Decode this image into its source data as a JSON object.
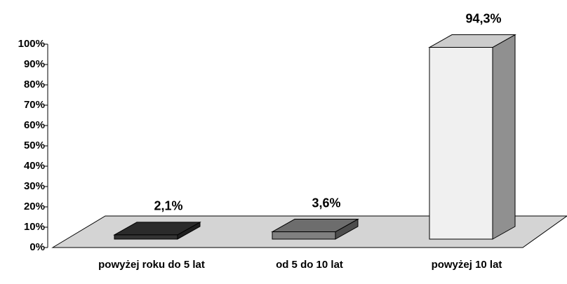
{
  "chart_data": {
    "type": "bar3d",
    "categories": [
      "powyżej roku do 5 lat",
      "od 5 do 10 lat",
      "powyżej 10 lat"
    ],
    "values": [
      2.1,
      3.6,
      94.3
    ],
    "value_labels": [
      "2,1%",
      "3,6%",
      "94,3%"
    ],
    "colors": [
      "#333333",
      "#808080",
      "#f0f0f0"
    ],
    "ylim": [
      0,
      100
    ],
    "yticks": [
      {
        "value": 0,
        "label": "0%"
      },
      {
        "value": 10,
        "label": "10%"
      },
      {
        "value": 20,
        "label": "20%"
      },
      {
        "value": 30,
        "label": "30%"
      },
      {
        "value": 40,
        "label": "40%"
      },
      {
        "value": 50,
        "label": "50%"
      },
      {
        "value": 60,
        "label": "60%"
      },
      {
        "value": 70,
        "label": "70%"
      },
      {
        "value": 80,
        "label": "80%"
      },
      {
        "value": 90,
        "label": "90%"
      },
      {
        "value": 100,
        "label": "100%"
      }
    ]
  }
}
